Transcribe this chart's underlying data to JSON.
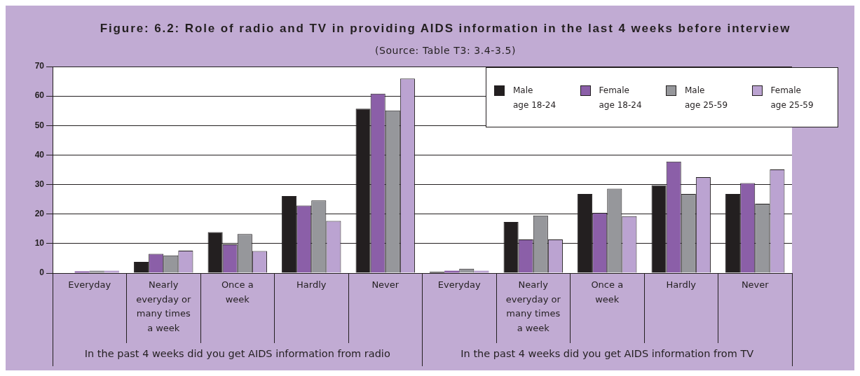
{
  "chart_data": {
    "type": "bar",
    "title": "Figure: 6.2: Role of radio and TV in providing AIDS information in the last 4 weeks before interview",
    "subtitle": "(Source: Table T3: 3.4-3.5)",
    "categories": [
      "Everyday",
      "Nearly everyday or many times a week",
      "Once a week",
      "Hardly",
      "Never",
      "Everyday",
      "Nearly everyday or many times a week",
      "Once a week",
      "Hardly",
      "Never"
    ],
    "annotations": [
      "In the past 4 weeks did you get AIDS information from radio",
      "In the past 4 weeks did you get AIDS information from TV"
    ],
    "series": [
      {
        "name": "Male age 18-24",
        "color": "#231f20",
        "values": [
          0,
          3.8,
          13.9,
          26.1,
          55.7,
          0.4,
          17.3,
          26.8,
          29.8,
          26.8
        ]
      },
      {
        "name": "Female age 18-24",
        "color": "#8b5fa8",
        "values": [
          0.6,
          6.5,
          9.7,
          22.9,
          60.8,
          0.8,
          11.4,
          20.4,
          37.8,
          30.5
        ]
      },
      {
        "name": "Male age 25-59",
        "color": "#96979b",
        "values": [
          0.8,
          6.0,
          13.2,
          24.6,
          55.1,
          1.5,
          19.5,
          28.6,
          26.8,
          23.5
        ]
      },
      {
        "name": "Female age 25-59",
        "color": "#bba3d1",
        "values": [
          0.8,
          7.6,
          7.5,
          17.7,
          65.9,
          0.8,
          11.4,
          19.3,
          32.5,
          35.1
        ]
      }
    ],
    "ylim": [
      0,
      70
    ],
    "yticks": [
      0,
      10,
      20,
      30,
      40,
      50,
      60,
      70
    ],
    "grid": "y",
    "legend": "top right"
  }
}
